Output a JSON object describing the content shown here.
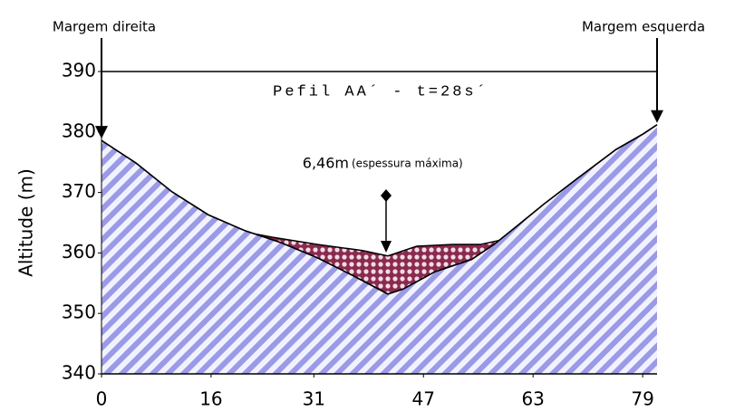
{
  "chart_data": {
    "type": "area",
    "title": "Pefil AA´ - t=28s´",
    "y_label": "Altitude (m)",
    "left_label": "Margem direita",
    "right_label": "Margem esquerda",
    "annotation": "6,46m",
    "annotation_note": "(espessura máxima)",
    "xlim": [
      0,
      81.1
    ],
    "ylim": [
      340,
      390
    ],
    "xticks": [
      0,
      16,
      31,
      47,
      63,
      79
    ],
    "yticks": [
      340,
      350,
      360,
      370,
      380,
      390
    ],
    "series": [
      {
        "color": "#8f8fe0",
        "x": [
          0,
          5,
          10.3,
          15.6,
          20.9,
          26.2,
          31.5,
          36.8,
          41.8,
          44,
          48.7,
          54,
          57.3,
          60.6,
          64.6,
          69.8,
          75.1,
          79.1,
          81.1
        ],
        "values": [
          378.6,
          374.9,
          370.1,
          366.3,
          363.7,
          361.7,
          359.2,
          356.2,
          353.2,
          354,
          356.9,
          358.9,
          361.4,
          364.4,
          368.1,
          372.6,
          377.1,
          379.7,
          381.2
        ]
      },
      {
        "color": "#8b2a4e",
        "x": [
          18.9,
          24.9,
          31.5,
          38.1,
          41.8,
          46,
          51.3,
          55.3,
          58.6
        ],
        "values": [
          363.9,
          362.6,
          361.4,
          360.4,
          359.5,
          361.1,
          361.4,
          361.4,
          362.2
        ]
      }
    ]
  }
}
